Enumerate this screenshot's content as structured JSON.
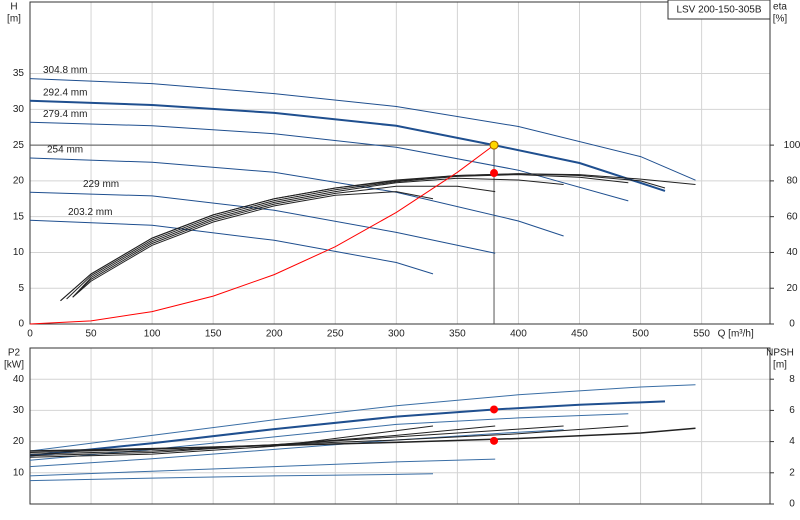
{
  "chart_data": [
    {
      "type": "line",
      "title": "LSV 200-150-305B",
      "ylabel": "H",
      "ylabel_unit": "[m]",
      "y2label": "eta",
      "y2label_unit": "[%]",
      "xlabel": "Q [m³/h]",
      "xlim": [
        0,
        606
      ],
      "xticks": [
        0,
        50,
        100,
        150,
        200,
        250,
        300,
        350,
        400,
        450,
        500,
        550
      ],
      "xtick_labels": true,
      "ylim": [
        0,
        45
      ],
      "yticks": [
        0,
        5,
        10,
        15,
        20,
        25,
        30,
        35
      ],
      "y2lim": [
        0,
        180
      ],
      "y2ticks": [
        0,
        20,
        40,
        60,
        80,
        100
      ],
      "grid": true,
      "guides": true,
      "series": [
        {
          "name": "304.8 mm",
          "color": "#1f4f8f",
          "width": 1,
          "x": [
            0,
            100,
            200,
            300,
            400,
            500,
            545
          ],
          "values": [
            34.3,
            33.6,
            32.2,
            30.4,
            27.6,
            23.4,
            20.1
          ]
        },
        {
          "name": "292.4 mm",
          "color": "#1f4f8f",
          "width": 2,
          "x": [
            0,
            100,
            200,
            300,
            380,
            450,
            520
          ],
          "values": [
            31.2,
            30.6,
            29.5,
            27.7,
            25,
            22.5,
            18.6
          ]
        },
        {
          "name": "279.4 mm",
          "color": "#1f4f8f",
          "width": 1,
          "x": [
            0,
            100,
            200,
            300,
            400,
            490
          ],
          "values": [
            28.2,
            27.7,
            26.6,
            24.7,
            21.5,
            17.2
          ]
        },
        {
          "name": "254 mm",
          "color": "#1f4f8f",
          "width": 1,
          "x": [
            0,
            100,
            200,
            300,
            400,
            437
          ],
          "values": [
            23.2,
            22.6,
            21.2,
            18.4,
            14.4,
            12.3
          ]
        },
        {
          "name": "229 mm",
          "color": "#1f4f8f",
          "width": 1,
          "x": [
            0,
            100,
            200,
            300,
            381
          ],
          "values": [
            18.4,
            17.9,
            15.9,
            12.8,
            9.9
          ]
        },
        {
          "name": "203.2 mm",
          "color": "#1f4f8f",
          "width": 1,
          "x": [
            0,
            100,
            200,
            300,
            330
          ],
          "values": [
            14.5,
            13.8,
            11.7,
            8.6,
            7.0
          ]
        },
        {
          "color": "#222222",
          "width": 1,
          "axis": "y2",
          "x": [
            25,
            50,
            100,
            150,
            200,
            250,
            300,
            350,
            400,
            450,
            500,
            545
          ],
          "values": [
            13,
            28,
            48,
            61,
            70,
            76,
            80,
            83,
            84,
            83.5,
            81,
            78
          ]
        },
        {
          "color": "#222222",
          "width": 1,
          "axis": "y2",
          "x": [
            25,
            50,
            100,
            150,
            200,
            250,
            300,
            350,
            400,
            450,
            500,
            520
          ],
          "values": [
            13,
            28,
            48,
            61,
            70,
            76,
            80.5,
            83,
            84,
            83,
            80,
            76
          ]
        },
        {
          "color": "#222222",
          "width": 1,
          "axis": "y2",
          "x": [
            30,
            50,
            100,
            150,
            200,
            250,
            300,
            350,
            400,
            450,
            490
          ],
          "values": [
            14,
            27,
            47,
            60,
            69,
            75,
            79.5,
            82.5,
            83.5,
            82,
            79
          ]
        },
        {
          "color": "#222222",
          "width": 1,
          "axis": "y2",
          "x": [
            35,
            50,
            100,
            150,
            200,
            250,
            300,
            350,
            400,
            437
          ],
          "values": [
            15,
            26,
            46,
            59,
            68,
            74,
            79,
            81.5,
            80.5,
            78
          ]
        },
        {
          "color": "#222222",
          "width": 1,
          "axis": "y2",
          "x": [
            35,
            50,
            100,
            150,
            200,
            250,
            300,
            350,
            381
          ],
          "values": [
            15,
            25,
            45,
            58,
            67,
            73,
            77,
            77,
            74
          ]
        },
        {
          "color": "#222222",
          "width": 1,
          "axis": "y2",
          "x": [
            35,
            50,
            100,
            150,
            200,
            250,
            300,
            330
          ],
          "values": [
            15,
            24,
            44,
            57,
            66,
            72,
            74,
            70
          ]
        },
        {
          "color": "#ff0000",
          "width": 1,
          "x": [
            0,
            50,
            100,
            150,
            200,
            250,
            300,
            350,
            380
          ],
          "values": [
            0,
            0.43,
            1.73,
            3.9,
            6.9,
            10.8,
            15.6,
            21.2,
            25
          ]
        }
      ],
      "points": [
        {
          "x": 380,
          "y": 25,
          "color": "#ffd700"
        },
        {
          "x": 380,
          "y": 84.4,
          "axis": "y2",
          "color": "#ff0000"
        }
      ]
    },
    {
      "type": "line",
      "ylabel": "P2",
      "ylabel_unit": "[kW]",
      "y2label": "NPSH",
      "y2label_unit": "[m]",
      "xlim": [
        0,
        606
      ],
      "xticks": [
        0,
        50,
        100,
        150,
        200,
        250,
        300,
        350,
        400,
        450,
        500,
        550
      ],
      "xtick_labels": false,
      "ylim": [
        0,
        50
      ],
      "yticks": [
        10,
        20,
        30,
        40
      ],
      "y2lim": [
        0,
        10
      ],
      "y2ticks": [
        0,
        2,
        4,
        6,
        8
      ],
      "grid": true,
      "guides": false,
      "series": [
        {
          "color": "#3a6ea5",
          "width": 1,
          "x": [
            0,
            100,
            200,
            300,
            400,
            500,
            545
          ],
          "values": [
            17,
            22,
            27,
            31.5,
            35,
            37.5,
            38.2
          ]
        },
        {
          "color": "#1f4f8f",
          "width": 2,
          "x": [
            0,
            100,
            200,
            300,
            380,
            450,
            520
          ],
          "values": [
            15.5,
            19.5,
            24,
            28,
            30.3,
            31.8,
            32.9
          ]
        },
        {
          "color": "#3a6ea5",
          "width": 1,
          "x": [
            0,
            100,
            200,
            300,
            400,
            490
          ],
          "values": [
            14,
            17.5,
            21.5,
            25.5,
            27.6,
            28.9
          ]
        },
        {
          "color": "#3a6ea5",
          "width": 1,
          "x": [
            0,
            100,
            200,
            300,
            400,
            437
          ],
          "values": [
            12,
            14.5,
            17.5,
            20.5,
            23,
            23.8
          ]
        },
        {
          "color": "#3a6ea5",
          "width": 1,
          "x": [
            0,
            100,
            200,
            300,
            381
          ],
          "values": [
            9,
            10.5,
            12,
            13.5,
            14.4
          ]
        },
        {
          "color": "#3a6ea5",
          "width": 1,
          "x": [
            0,
            100,
            200,
            300,
            330
          ],
          "values": [
            7.5,
            8.3,
            9,
            9.5,
            9.7
          ]
        },
        {
          "color": "#222222",
          "width": 1.5,
          "axis": "y2",
          "x": [
            0,
            100,
            200,
            300,
            400,
            500,
            545
          ],
          "values": [
            3.4,
            3.55,
            3.75,
            3.95,
            4.2,
            4.55,
            4.85
          ]
        },
        {
          "color": "#222222",
          "width": 1,
          "axis": "y2",
          "x": [
            0,
            100,
            200,
            300,
            400,
            490
          ],
          "values": [
            3.3,
            3.5,
            3.8,
            4.1,
            4.5,
            5.0
          ]
        },
        {
          "color": "#222222",
          "width": 1,
          "axis": "y2",
          "x": [
            0,
            100,
            200,
            300,
            400,
            437
          ],
          "values": [
            3.2,
            3.4,
            3.8,
            4.3,
            4.8,
            5.0
          ]
        },
        {
          "color": "#222222",
          "width": 1,
          "axis": "y2",
          "x": [
            0,
            100,
            200,
            300,
            381
          ],
          "values": [
            3.1,
            3.3,
            3.8,
            4.4,
            5.0
          ]
        },
        {
          "color": "#222222",
          "width": 1,
          "axis": "y2",
          "x": [
            0,
            100,
            200,
            330
          ],
          "values": [
            3.0,
            3.2,
            3.7,
            5.0
          ]
        }
      ],
      "points": [
        {
          "x": 380,
          "y": 30.3,
          "color": "#ff0000"
        },
        {
          "x": 380,
          "y": 4.05,
          "axis": "y2",
          "color": "#ff0000"
        }
      ]
    }
  ]
}
